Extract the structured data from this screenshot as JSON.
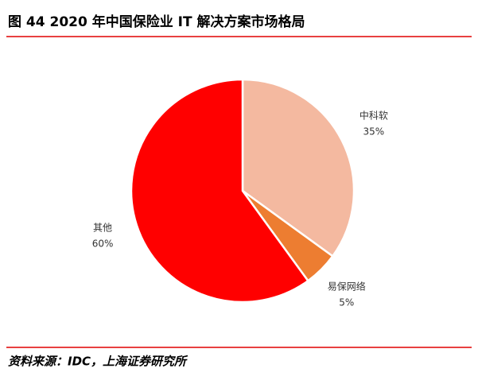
{
  "chart_data": {
    "type": "pie",
    "title": "图 44 2020 年中国保险业 IT 解决方案市场格局",
    "categories": [
      "中科软",
      "易保网络",
      "其他"
    ],
    "values": [
      35,
      5,
      60
    ],
    "value_labels": [
      "35%",
      "5%",
      "60%"
    ],
    "colors": [
      "#f4b9a0",
      "#ed7d31",
      "#ff0000"
    ],
    "source": "资料来源：IDC，上海证券研究所"
  }
}
